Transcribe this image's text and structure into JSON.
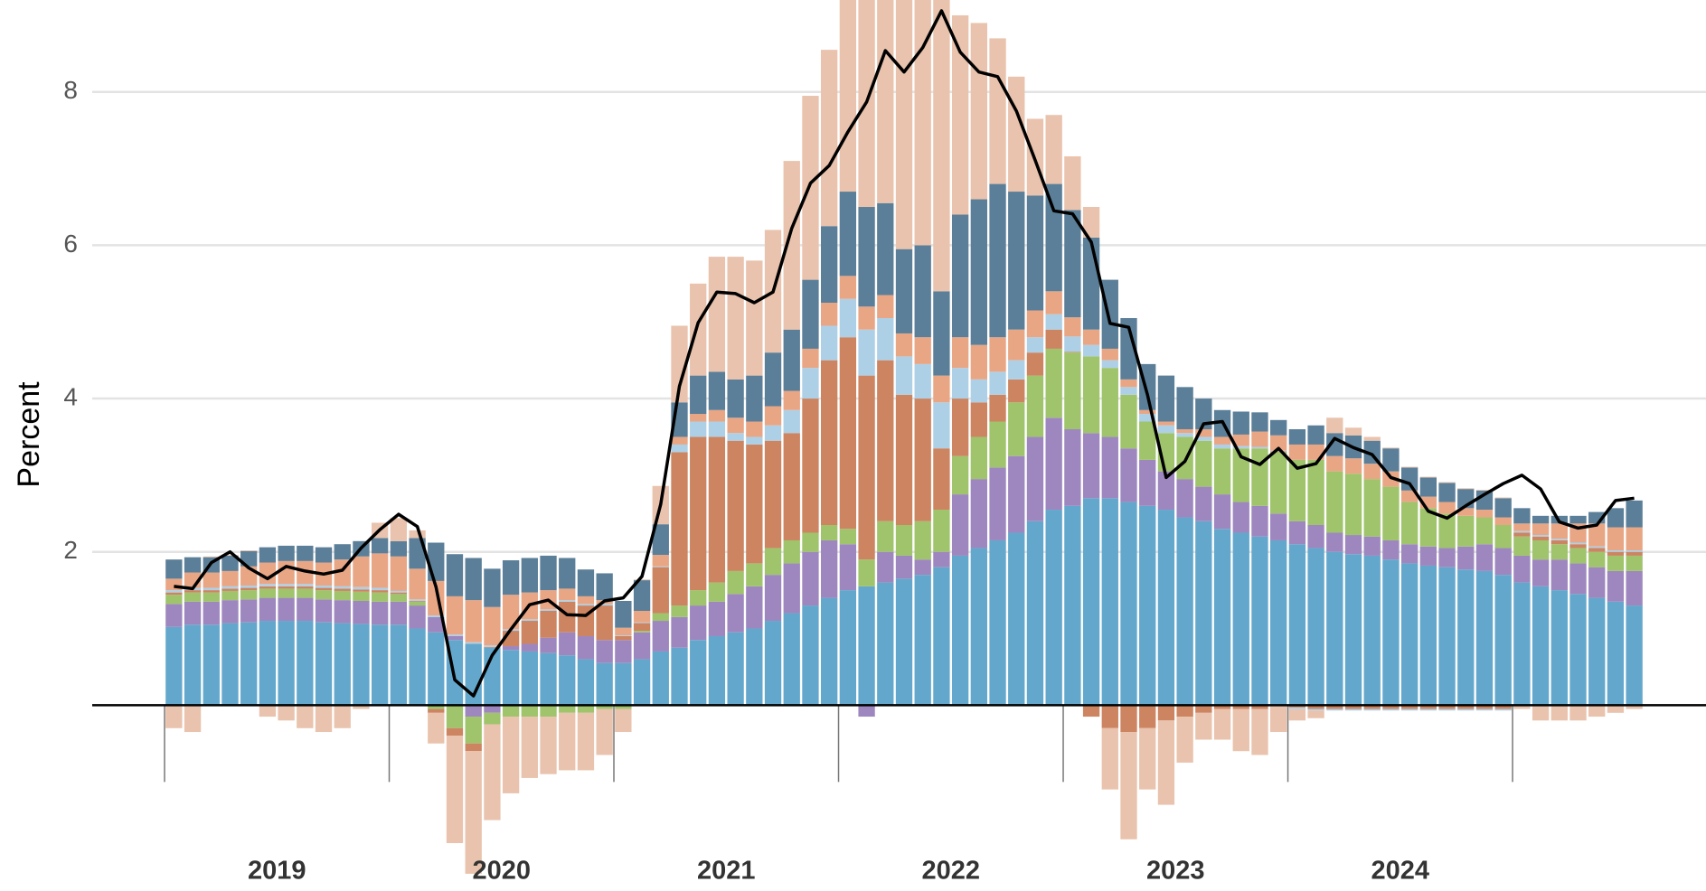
{
  "chart_data": {
    "type": "stacked_bar",
    "y_label": "Percent",
    "categories": [
      null,
      null,
      null,
      null,
      null,
      null,
      "2019",
      null,
      null,
      null,
      null,
      null,
      null,
      null,
      null,
      null,
      null,
      null,
      "2020",
      null,
      null,
      null,
      null,
      null,
      null,
      null,
      null,
      null,
      null,
      null,
      "2021",
      null,
      null,
      null,
      null,
      null,
      null,
      null,
      null,
      null,
      null,
      null,
      "2022",
      null,
      null,
      null,
      null,
      null,
      null,
      null,
      null,
      null,
      null,
      null,
      "2023",
      null,
      null,
      null,
      null,
      null,
      null,
      null,
      null,
      null,
      null,
      null,
      "2024",
      null,
      null,
      null,
      null,
      null,
      null,
      null,
      null,
      null,
      null,
      null,
      null
    ],
    "ylim": [
      -1.8,
      9.2
    ],
    "yticks": [
      2,
      4,
      6,
      8
    ],
    "grid": true,
    "series": [
      {
        "color": "#63a8cc",
        "values": [
          1.02,
          1.05,
          1.05,
          1.07,
          1.08,
          1.1,
          1.1,
          1.1,
          1.08,
          1.07,
          1.06,
          1.05,
          1.05,
          1.0,
          0.95,
          0.85,
          0.8,
          0.75,
          0.72,
          0.7,
          0.68,
          0.65,
          0.6,
          0.55,
          0.55,
          0.6,
          0.7,
          0.75,
          0.85,
          0.9,
          0.95,
          1.0,
          1.1,
          1.2,
          1.3,
          1.4,
          1.5,
          1.55,
          1.6,
          1.65,
          1.7,
          1.8,
          1.95,
          2.05,
          2.15,
          2.25,
          2.4,
          2.55,
          2.6,
          2.7,
          2.7,
          2.65,
          2.6,
          2.55,
          2.45,
          2.4,
          2.3,
          2.25,
          2.2,
          2.15,
          2.1,
          2.05,
          2.0,
          1.97,
          1.95,
          1.9,
          1.85,
          1.82,
          1.8,
          1.77,
          1.75,
          1.7,
          1.6,
          1.55,
          1.5,
          1.45,
          1.4,
          1.35,
          1.3
        ]
      },
      {
        "color": "#9e87bf",
        "values": [
          0.3,
          0.3,
          0.3,
          0.3,
          0.3,
          0.3,
          0.3,
          0.3,
          0.3,
          0.3,
          0.3,
          0.3,
          0.3,
          0.3,
          0.2,
          0.05,
          -0.15,
          -0.1,
          0.05,
          0.1,
          0.2,
          0.3,
          0.3,
          0.3,
          0.3,
          0.35,
          0.4,
          0.4,
          0.45,
          0.45,
          0.5,
          0.55,
          0.6,
          0.65,
          0.7,
          0.75,
          0.6,
          -0.15,
          0.4,
          0.3,
          0.2,
          0.2,
          0.8,
          0.9,
          0.95,
          1.0,
          1.1,
          1.2,
          1.0,
          0.85,
          0.8,
          0.7,
          0.6,
          0.5,
          0.5,
          0.45,
          0.45,
          0.4,
          0.4,
          0.35,
          0.3,
          0.3,
          0.25,
          0.25,
          0.25,
          0.25,
          0.25,
          0.25,
          0.25,
          0.3,
          0.35,
          0.35,
          0.35,
          0.35,
          0.4,
          0.4,
          0.4,
          0.4,
          0.45
        ]
      },
      {
        "color": "#9fc46b",
        "values": [
          0.12,
          0.12,
          0.12,
          0.12,
          0.12,
          0.12,
          0.12,
          0.12,
          0.12,
          0.12,
          0.12,
          0.12,
          0.1,
          0.05,
          -0.05,
          -0.3,
          -0.35,
          -0.15,
          -0.15,
          -0.15,
          -0.15,
          -0.1,
          -0.1,
          -0.05,
          -0.05,
          0.02,
          0.1,
          0.15,
          0.2,
          0.25,
          0.3,
          0.3,
          0.35,
          0.3,
          0.25,
          0.2,
          0.2,
          0.35,
          0.4,
          0.4,
          0.5,
          0.55,
          0.5,
          0.55,
          0.6,
          0.7,
          0.8,
          0.9,
          1.0,
          1.0,
          0.9,
          0.7,
          0.5,
          0.5,
          0.55,
          0.6,
          0.6,
          0.7,
          0.75,
          0.8,
          0.8,
          0.85,
          0.8,
          0.8,
          0.75,
          0.7,
          0.55,
          0.5,
          0.45,
          0.4,
          0.35,
          0.3,
          0.25,
          0.25,
          0.2,
          0.2,
          0.2,
          0.2,
          0.2
        ]
      },
      {
        "color": "#cc8461",
        "values": [
          0.03,
          0.03,
          0.03,
          0.03,
          0.03,
          0.03,
          0.03,
          0.03,
          0.03,
          0.03,
          0.03,
          0.03,
          0.02,
          0.01,
          -0.05,
          -0.1,
          -0.1,
          0.01,
          0.2,
          0.3,
          0.35,
          0.4,
          0.4,
          0.45,
          0.05,
          0.1,
          0.6,
          2.0,
          2.0,
          1.9,
          1.7,
          1.55,
          1.4,
          1.4,
          1.75,
          2.15,
          2.5,
          2.4,
          2.1,
          1.7,
          1.6,
          0.8,
          0.75,
          0.45,
          0.35,
          0.3,
          0.3,
          0.25,
          0.01,
          -0.15,
          -0.3,
          -0.35,
          -0.3,
          -0.2,
          -0.15,
          -0.1,
          -0.05,
          -0.05,
          -0.05,
          0.01,
          -0.03,
          -0.05,
          -0.05,
          -0.05,
          -0.05,
          -0.05,
          -0.05,
          -0.05,
          -0.05,
          -0.05,
          -0.05,
          -0.05,
          0.05,
          0.05,
          0.05,
          0.05,
          0.05,
          0.05,
          0.05
        ]
      },
      {
        "color": "#aed0e6",
        "values": [
          0.03,
          0.03,
          0.03,
          0.03,
          0.03,
          0.03,
          0.03,
          0.03,
          0.03,
          0.03,
          0.03,
          0.03,
          0.02,
          0.02,
          0.02,
          0.02,
          0.02,
          0.02,
          0.02,
          0.02,
          0.02,
          0.02,
          0.02,
          0.02,
          0.01,
          0.01,
          0.01,
          0.1,
          0.2,
          0.2,
          0.1,
          0.1,
          0.2,
          0.3,
          0.4,
          0.45,
          0.5,
          0.6,
          0.55,
          0.5,
          0.45,
          0.6,
          0.4,
          0.3,
          0.3,
          0.25,
          0.2,
          0.2,
          0.2,
          0.15,
          0.1,
          0.1,
          0.1,
          0.1,
          0.05,
          0.05,
          0.05,
          0.03,
          0.02,
          0.01,
          -0.02,
          -0.02,
          -0.02,
          -0.02,
          -0.02,
          -0.02,
          -0.02,
          -0.02,
          -0.02,
          -0.02,
          -0.02,
          -0.02,
          0.02,
          0.02,
          0.02,
          0.02,
          0.02,
          0.02,
          0.02
        ]
      },
      {
        "color": "#e8a685",
        "values": [
          0.15,
          0.2,
          0.2,
          0.2,
          0.25,
          0.28,
          0.3,
          0.3,
          0.3,
          0.35,
          0.4,
          0.45,
          0.45,
          0.4,
          0.45,
          0.5,
          0.55,
          0.5,
          0.45,
          0.35,
          0.25,
          0.15,
          0.1,
          0.05,
          0.1,
          0.15,
          0.15,
          0.1,
          0.1,
          0.15,
          0.2,
          0.2,
          0.25,
          0.25,
          0.25,
          0.3,
          0.3,
          0.3,
          0.3,
          0.3,
          0.35,
          0.35,
          0.4,
          0.45,
          0.45,
          0.4,
          0.35,
          0.3,
          0.25,
          0.2,
          0.15,
          0.1,
          0.05,
          0.05,
          0.05,
          0.1,
          0.1,
          0.15,
          0.2,
          0.2,
          0.2,
          0.2,
          0.2,
          0.2,
          0.2,
          0.2,
          0.15,
          0.15,
          0.15,
          0.1,
          0.1,
          0.1,
          0.1,
          0.15,
          0.2,
          0.25,
          0.3,
          0.3,
          0.3
        ]
      },
      {
        "color": "#5b7f98",
        "values": [
          0.25,
          0.2,
          0.2,
          0.2,
          0.2,
          0.2,
          0.2,
          0.2,
          0.2,
          0.2,
          0.2,
          0.2,
          0.2,
          0.4,
          0.5,
          0.55,
          0.55,
          0.5,
          0.45,
          0.45,
          0.45,
          0.4,
          0.35,
          0.35,
          0.35,
          0.4,
          0.4,
          0.45,
          0.5,
          0.5,
          0.5,
          0.6,
          0.7,
          0.8,
          0.9,
          1.0,
          1.1,
          1.3,
          1.2,
          1.1,
          1.2,
          1.1,
          1.6,
          1.9,
          2.0,
          1.8,
          1.5,
          1.4,
          1.4,
          1.2,
          0.9,
          0.8,
          0.6,
          0.6,
          0.55,
          0.4,
          0.35,
          0.3,
          0.25,
          0.2,
          0.2,
          0.25,
          0.3,
          0.3,
          0.3,
          0.3,
          0.3,
          0.25,
          0.25,
          0.25,
          0.25,
          0.25,
          0.2,
          0.1,
          0.1,
          0.1,
          0.15,
          0.25,
          0.35
        ]
      },
      {
        "color": "#e9c3ad",
        "values": [
          -0.3,
          -0.35,
          0.01,
          0.01,
          0.01,
          -0.15,
          -0.2,
          -0.3,
          -0.35,
          -0.3,
          -0.05,
          0.2,
          0.3,
          0.1,
          -0.4,
          -1.4,
          -1.6,
          -1.25,
          -1.0,
          -0.8,
          -0.75,
          -0.75,
          -0.75,
          -0.6,
          -0.3,
          0.01,
          0.5,
          1.0,
          1.2,
          1.5,
          1.6,
          1.5,
          1.6,
          2.2,
          2.4,
          2.3,
          2.7,
          3.0,
          3.3,
          3.5,
          3.7,
          3.9,
          2.6,
          2.3,
          1.9,
          1.5,
          1.0,
          0.9,
          0.7,
          0.4,
          -0.8,
          -1.4,
          -0.8,
          -1.1,
          -0.6,
          -0.35,
          -0.4,
          -0.55,
          -0.6,
          -0.35,
          -0.15,
          -0.1,
          0.2,
          0.1,
          0.05,
          0.01,
          0.01,
          0.01,
          0.01,
          0.01,
          0.01,
          0.01,
          -0.05,
          -0.2,
          -0.2,
          -0.2,
          -0.15,
          -0.1,
          -0.05
        ]
      }
    ],
    "line": {
      "color": "#000000",
      "values": [
        1.55,
        1.52,
        1.86,
        2.0,
        1.79,
        1.65,
        1.81,
        1.75,
        1.71,
        1.76,
        2.05,
        2.29,
        2.49,
        2.33,
        1.54,
        0.33,
        0.12,
        0.65,
        0.99,
        1.31,
        1.37,
        1.18,
        1.17,
        1.36,
        1.4,
        1.68,
        2.62,
        4.16,
        4.99,
        5.39,
        5.37,
        5.25,
        5.39,
        6.22,
        6.81,
        7.04,
        7.48,
        7.87,
        8.54,
        8.26,
        8.58,
        9.06,
        8.52,
        8.26,
        8.2,
        7.75,
        7.11,
        6.45,
        6.41,
        6.04,
        4.98,
        4.93,
        4.05,
        2.97,
        3.18,
        3.67,
        3.7,
        3.24,
        3.14,
        3.35,
        3.09,
        3.15,
        3.48,
        3.36,
        3.27,
        2.97,
        2.89,
        2.53,
        2.44,
        2.6,
        2.75,
        2.89,
        3.0,
        2.82,
        2.39,
        2.31,
        2.35,
        2.67,
        2.7
      ]
    }
  }
}
